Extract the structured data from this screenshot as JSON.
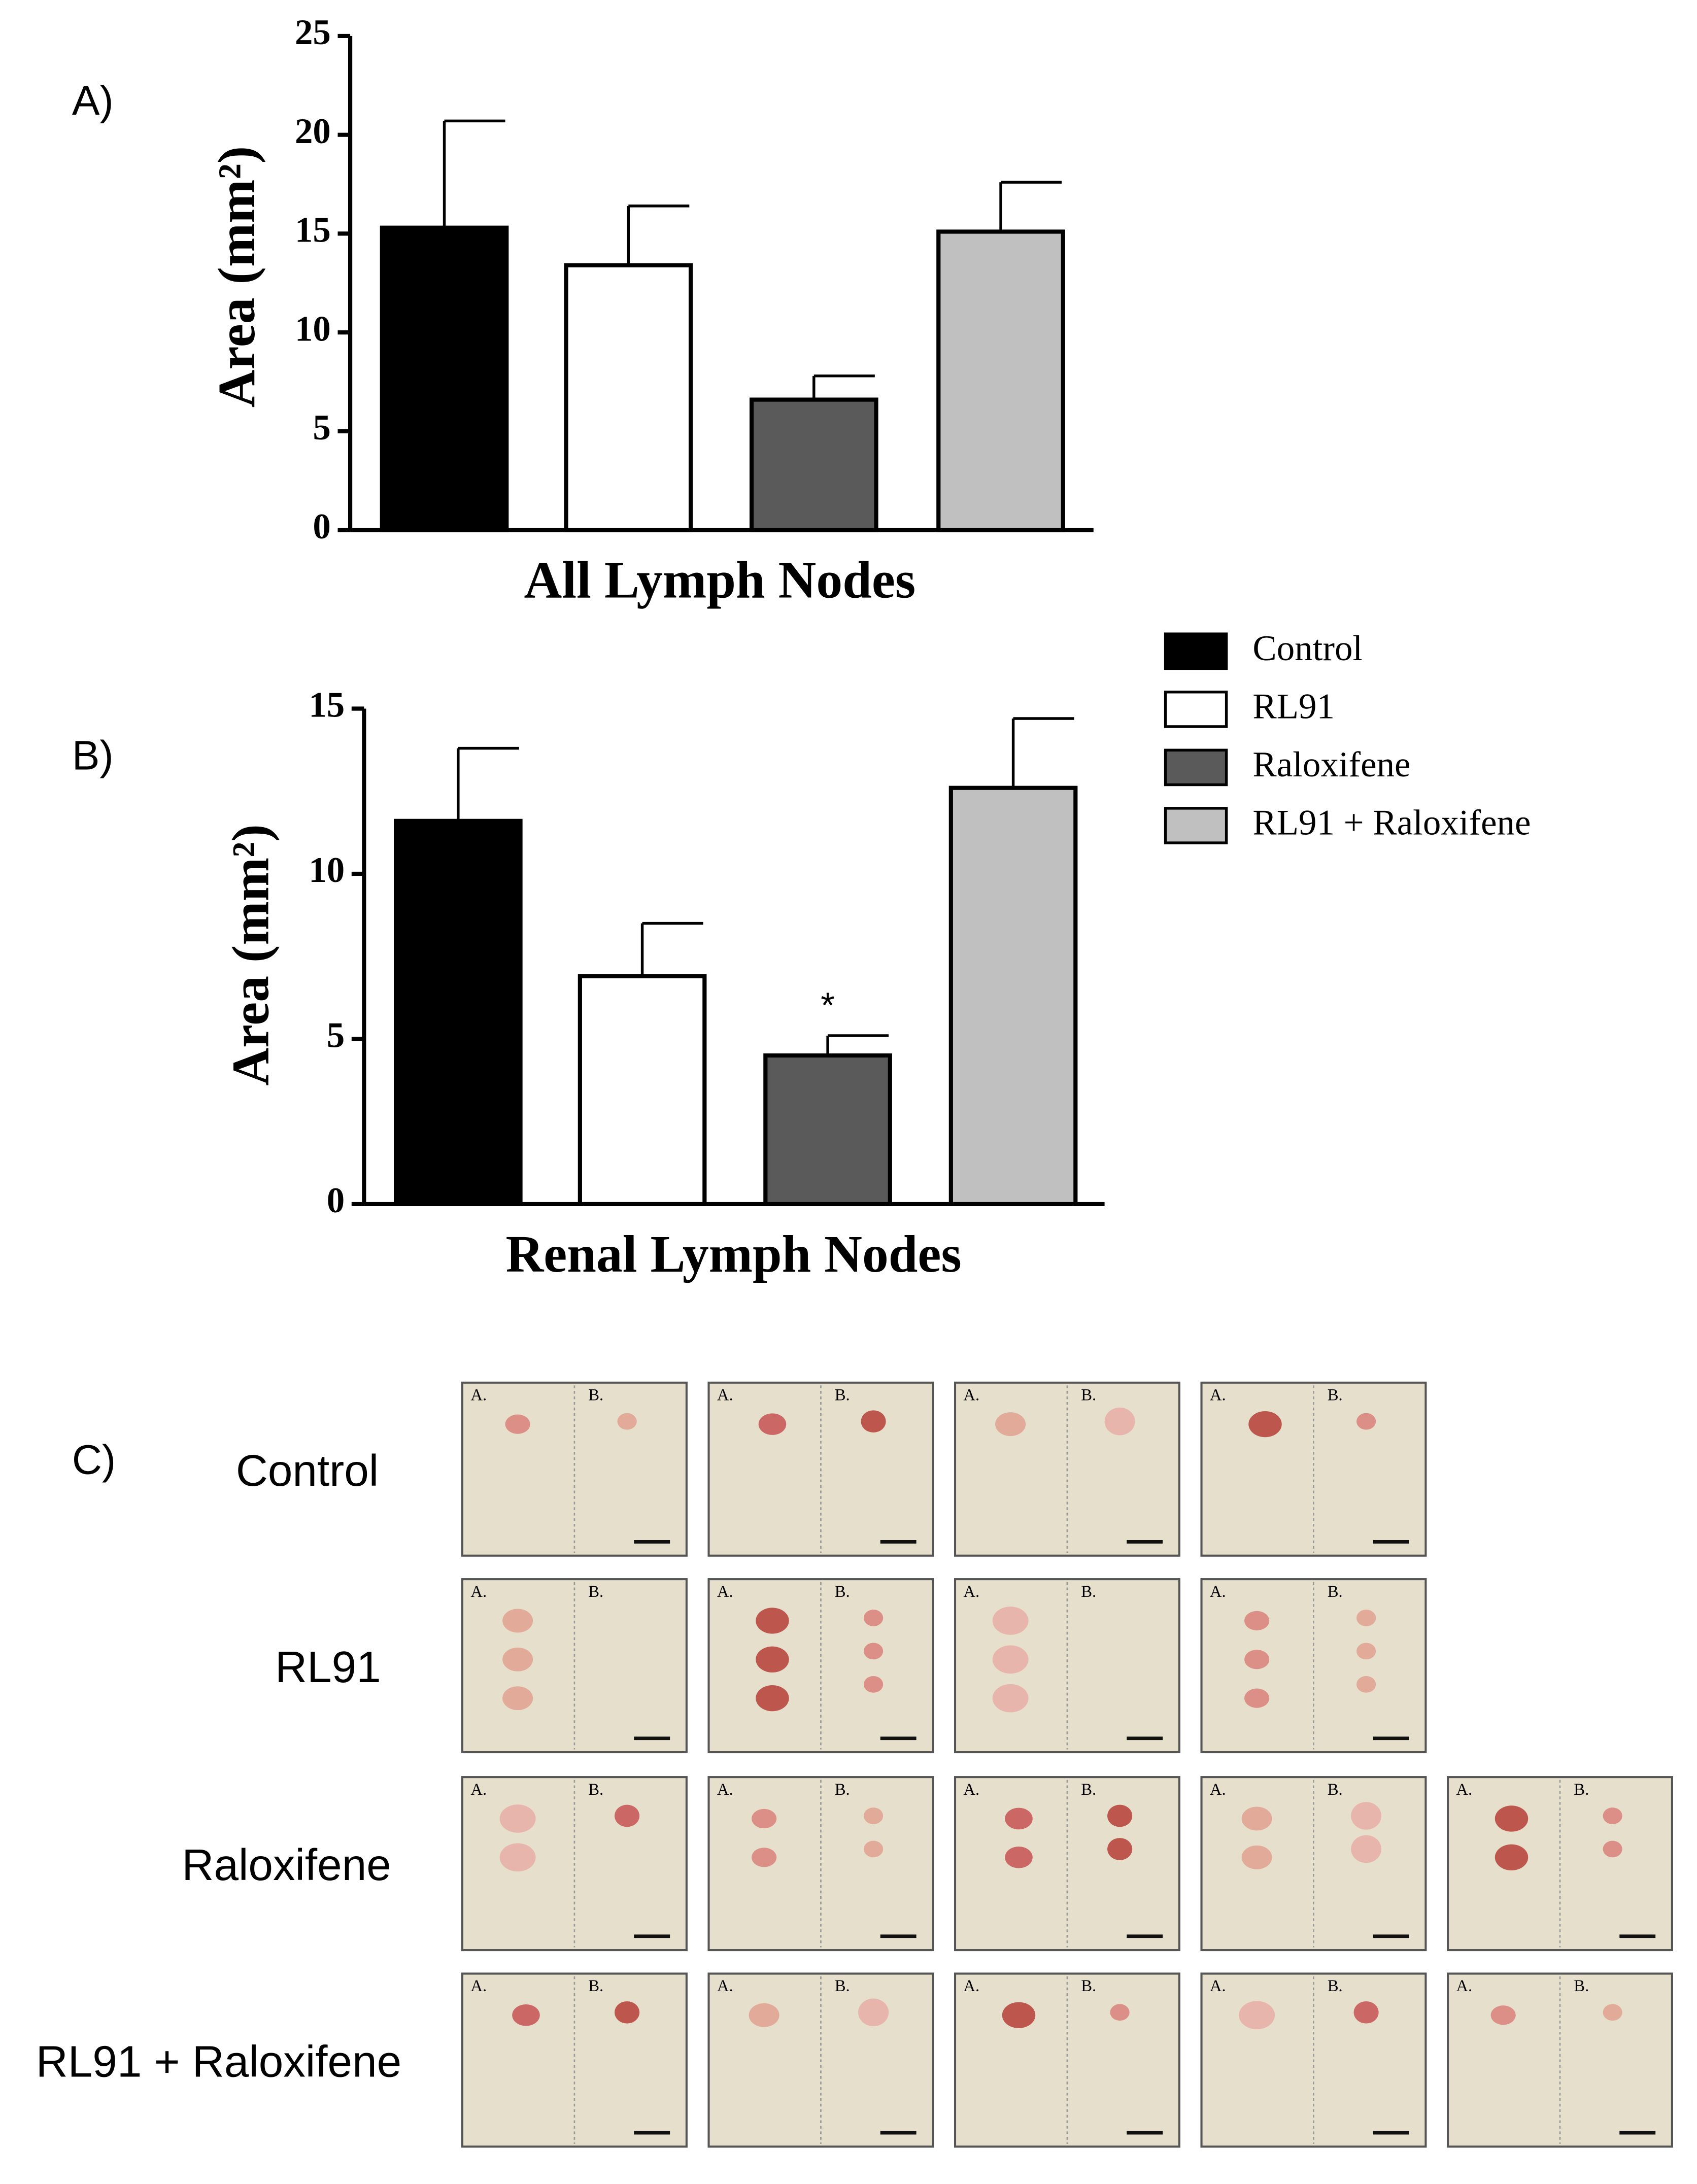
{
  "chart_data": [
    {
      "type": "bar",
      "xlabel": "All Lymph Nodes",
      "ylabel": "Area (mm²)",
      "values": [
        15.3,
        13.4,
        6.6,
        15.1
      ],
      "errors": [
        5.4,
        3.0,
        1.2,
        2.5
      ],
      "colors": [
        "#000000",
        "#ffffff",
        "#5a5a5a",
        "#c0c0c0"
      ],
      "ylim": [
        0,
        25
      ],
      "yticks": [
        0,
        5,
        10,
        15,
        20,
        25
      ]
    },
    {
      "type": "bar",
      "xlabel": "Renal Lymph Nodes",
      "ylabel": "Area (mm²)",
      "values": [
        11.6,
        6.9,
        4.5,
        12.6
      ],
      "errors": [
        2.2,
        1.6,
        0.6,
        2.1
      ],
      "colors": [
        "#000000",
        "#ffffff",
        "#5a5a5a",
        "#c0c0c0"
      ],
      "ylim": [
        0,
        15
      ],
      "yticks": [
        0,
        5,
        10,
        15
      ],
      "annotations": [
        {
          "text": "*",
          "index": 2
        }
      ],
      "legend": [
        "Control",
        "RL91",
        "Raloxifene",
        "RL91 + Raloxifene"
      ]
    }
  ],
  "panels": {
    "labels": [
      "A)",
      "B)",
      "C)"
    ]
  },
  "photos": {
    "panel_labels": [
      "A.",
      "B."
    ],
    "rows": [
      {
        "label": "Control",
        "count": 4
      },
      {
        "label": "RL91",
        "count": 4
      },
      {
        "label": "Raloxifene",
        "count": 5
      },
      {
        "label": "RL91 + Raloxifene",
        "count": 5
      }
    ]
  }
}
